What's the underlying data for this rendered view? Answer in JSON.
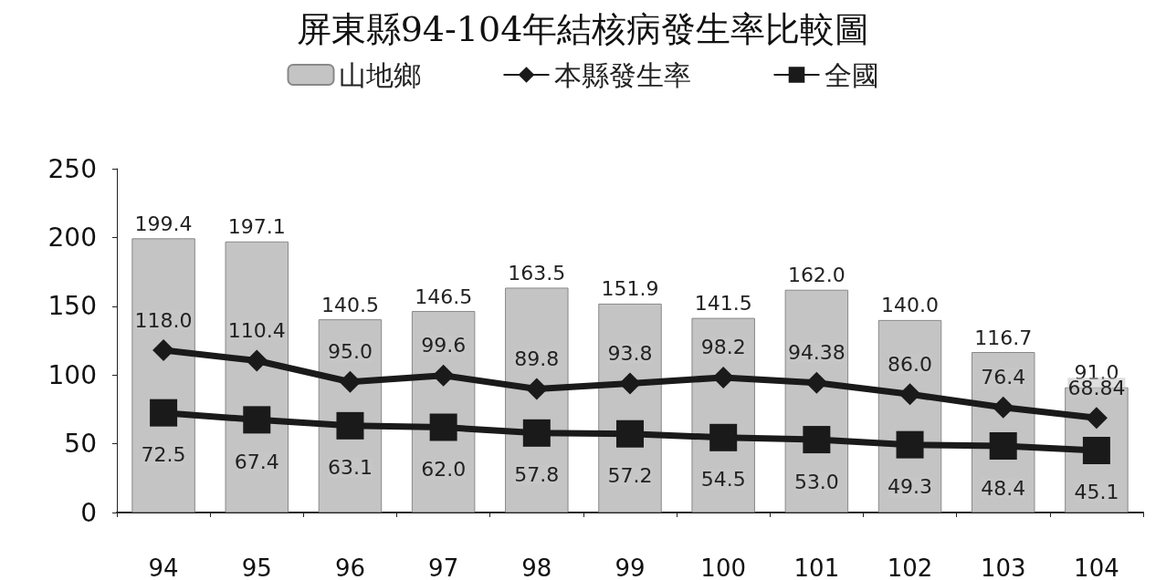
{
  "chart_data": {
    "type": "bar",
    "title": "屏東縣94-104年結核病發生率比較圖",
    "categories": [
      "94",
      "95",
      "96",
      "97",
      "98",
      "99",
      "100",
      "101",
      "102",
      "103",
      "104"
    ],
    "series": [
      {
        "name": "山地鄉",
        "color": "#c4c4c4",
        "values": [
          199.4,
          197.1,
          140.5,
          146.5,
          163.5,
          151.9,
          141.5,
          162.0,
          140.0,
          116.7,
          91.0
        ],
        "value_labels": [
          "199.4",
          "197.1",
          "140.5",
          "146.5",
          "163.5",
          "151.9",
          "141.5",
          "162.0",
          "140.0",
          "116.7",
          "91.0"
        ]
      },
      {
        "name": "本縣發生率",
        "type": "line",
        "color": "#1a1a1a",
        "marker": "diamond",
        "values": [
          118.0,
          110.4,
          95.0,
          99.6,
          89.8,
          93.8,
          98.2,
          94.38,
          86.0,
          76.4,
          68.84
        ],
        "value_labels": [
          "118.0",
          "110.4",
          "95.0",
          "99.6",
          "89.8",
          "93.8",
          "98.2",
          "94.38",
          "86.0",
          "76.4",
          "68.84"
        ]
      },
      {
        "name": "全國",
        "type": "line",
        "color": "#1a1a1a",
        "marker": "square",
        "values": [
          72.5,
          67.4,
          63.1,
          62.0,
          57.8,
          57.2,
          54.5,
          53.0,
          49.3,
          48.4,
          45.1
        ],
        "value_labels": [
          "72.5",
          "67.4",
          "63.1",
          "62.0",
          "57.8",
          "57.2",
          "54.5",
          "53.0",
          "49.3",
          "48.4",
          "45.1"
        ]
      }
    ],
    "ylim": [
      0,
      250
    ],
    "yticks": [
      0,
      50,
      100,
      150,
      200,
      250
    ],
    "grid": false,
    "legend": "top",
    "line_style": "solid"
  }
}
